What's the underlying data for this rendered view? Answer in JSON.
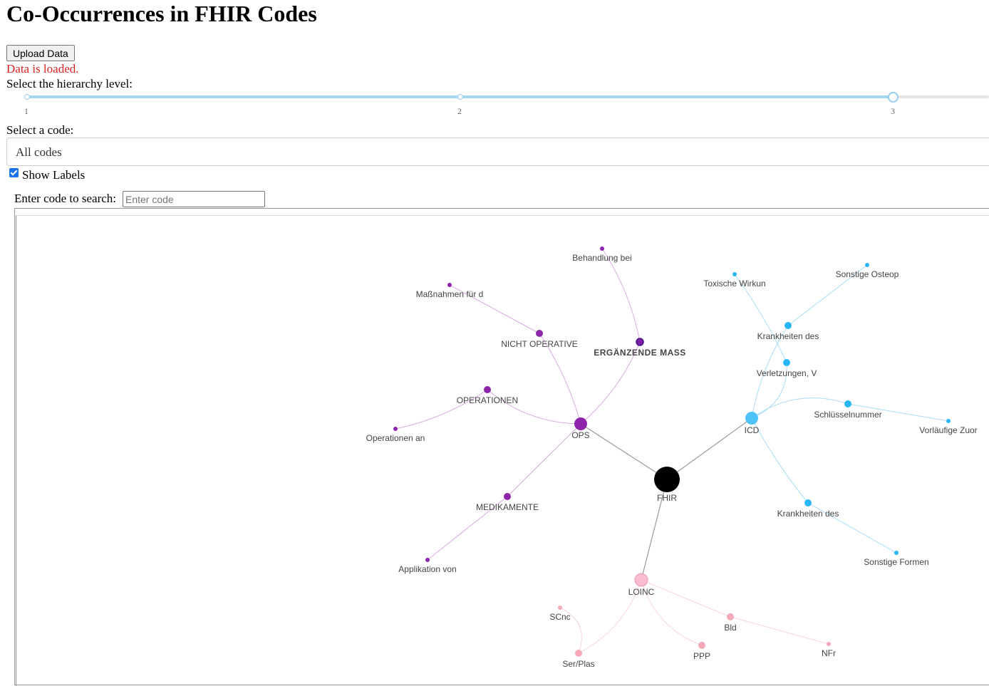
{
  "header": {
    "title": "Co-Occurrences in FHIR Codes"
  },
  "controls": {
    "upload_label": "Upload Data",
    "status": "Data is loaded.",
    "hierarchy_label": "Select the hierarchy level:",
    "hierarchy": {
      "marks": [
        "1",
        "2",
        "3"
      ],
      "selected": 3
    },
    "code_label": "Select a code:",
    "code_selected": "All codes",
    "show_labels": "Show Labels",
    "show_labels_checked": true,
    "search_label": "Enter code to search:",
    "search_placeholder": "Enter code",
    "search_value": ""
  },
  "colors": {
    "root": "#000000",
    "ops": "#8e24aa",
    "icd": "#29b6f6",
    "loinc": "#f8bbd0",
    "edge_root": "#999999"
  },
  "graph": {
    "nodes": [
      {
        "id": "fhir",
        "label": "FHIR",
        "group": "root"
      },
      {
        "id": "ops",
        "label": "OPS",
        "group": "ops"
      },
      {
        "id": "icd",
        "label": "ICD",
        "group": "icd"
      },
      {
        "id": "loinc",
        "label": "LOINC",
        "group": "loinc"
      },
      {
        "id": "ops_nicht",
        "label": "NICHT OPERATIVE",
        "group": "ops"
      },
      {
        "id": "ops_ergaenz",
        "label": "ERGÄNZENDE MASS",
        "group": "ops",
        "bold": true
      },
      {
        "id": "ops_operationen",
        "label": "OPERATIONEN",
        "group": "ops"
      },
      {
        "id": "ops_medikamente",
        "label": "MEDIKAMENTE",
        "group": "ops"
      },
      {
        "id": "ops_massnahmen",
        "label": "Maßnahmen für d",
        "group": "ops"
      },
      {
        "id": "ops_behandlung",
        "label": "Behandlung bei",
        "group": "ops"
      },
      {
        "id": "ops_opan",
        "label": "Operationen an",
        "group": "ops"
      },
      {
        "id": "ops_applikation",
        "label": "Applikation von",
        "group": "ops"
      },
      {
        "id": "icd_toxische",
        "label": "Toxische Wirkun",
        "group": "icd"
      },
      {
        "id": "icd_sonstige_osteop",
        "label": "Sonstige Osteop",
        "group": "icd"
      },
      {
        "id": "icd_krankheiten1",
        "label": "Krankheiten des",
        "group": "icd"
      },
      {
        "id": "icd_verletzungen",
        "label": "Verletzungen, V",
        "group": "icd"
      },
      {
        "id": "icd_schluessel",
        "label": "Schlüsselnummer",
        "group": "icd"
      },
      {
        "id": "icd_vorlaeufige",
        "label": "Vorläufige Zuor",
        "group": "icd"
      },
      {
        "id": "icd_krankheiten2",
        "label": "Krankheiten des",
        "group": "icd"
      },
      {
        "id": "icd_sonstige_formen",
        "label": "Sonstige Formen",
        "group": "icd"
      },
      {
        "id": "loinc_scnc",
        "label": "SCnc",
        "group": "loinc"
      },
      {
        "id": "loinc_serplas",
        "label": "Ser/Plas",
        "group": "loinc"
      },
      {
        "id": "loinc_ppp",
        "label": "PPP",
        "group": "loinc"
      },
      {
        "id": "loinc_bld",
        "label": "Bld",
        "group": "loinc"
      },
      {
        "id": "loinc_nfr",
        "label": "NFr",
        "group": "loinc"
      }
    ]
  }
}
